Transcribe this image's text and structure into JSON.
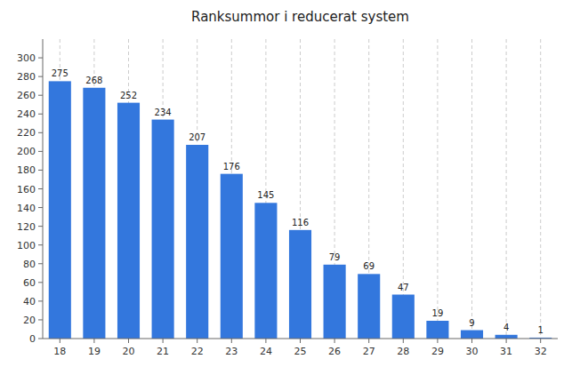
{
  "chart_data": {
    "type": "bar",
    "title": "Ranksummor i reducerat system",
    "categories": [
      18,
      19,
      20,
      21,
      22,
      23,
      24,
      25,
      26,
      27,
      28,
      29,
      30,
      31,
      32
    ],
    "values": [
      275,
      268,
      252,
      234,
      207,
      176,
      145,
      116,
      79,
      69,
      47,
      19,
      9,
      4,
      1
    ],
    "color": "#3377dd",
    "ylim": [
      0,
      320
    ],
    "yticks": [
      0,
      20,
      40,
      60,
      80,
      100,
      120,
      140,
      160,
      180,
      200,
      220,
      240,
      260,
      280,
      300
    ],
    "grid": true,
    "data_labels": true
  }
}
